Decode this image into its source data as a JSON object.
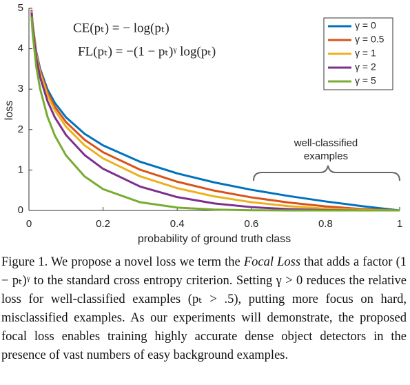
{
  "chart_data": {
    "type": "line",
    "xlabel": "probability of ground truth class",
    "ylabel": "loss",
    "annotations": [
      "CE(pₜ) = − log(pₜ)",
      "FL(pₜ) = −(1 − pₜ)ᵞ log(pₜ)"
    ],
    "brace_label": [
      "well-classified",
      "examples"
    ],
    "xlim": [
      0,
      1
    ],
    "ylim": [
      0,
      5
    ],
    "xticks": [
      0,
      0.2,
      0.4,
      0.6,
      0.8,
      1
    ],
    "yticks": [
      0,
      1,
      2,
      3,
      4,
      5
    ],
    "legend": "upper right",
    "x": [
      0.007,
      0.01,
      0.02,
      0.03,
      0.05,
      0.07,
      0.1,
      0.15,
      0.2,
      0.3,
      0.4,
      0.5,
      0.6,
      0.7,
      0.8,
      0.9,
      1
    ],
    "series": [
      {
        "name": "γ = 0",
        "color": "#0072bd",
        "values": [
          4.962,
          4.605,
          3.912,
          3.507,
          2.996,
          2.659,
          2.303,
          1.897,
          1.609,
          1.204,
          0.916,
          0.693,
          0.511,
          0.357,
          0.223,
          0.105,
          0
        ]
      },
      {
        "name": "γ = 0.5",
        "color": "#d95319",
        "values": [
          4.945,
          4.582,
          3.873,
          3.454,
          2.92,
          2.564,
          2.185,
          1.749,
          1.439,
          1.007,
          0.71,
          0.49,
          0.323,
          0.196,
          0.1,
          0.033,
          0
        ]
      },
      {
        "name": "γ = 1",
        "color": "#edb120",
        "values": [
          4.927,
          4.559,
          3.834,
          3.402,
          2.846,
          2.473,
          2.073,
          1.612,
          1.287,
          0.843,
          0.55,
          0.347,
          0.204,
          0.107,
          0.045,
          0.011,
          0
        ]
      },
      {
        "name": "γ = 2",
        "color": "#7e2f8e",
        "values": [
          4.893,
          4.514,
          3.757,
          3.3,
          2.704,
          2.3,
          1.865,
          1.371,
          1.03,
          0.59,
          0.33,
          0.173,
          0.082,
          0.032,
          0.009,
          0.001,
          0
        ]
      },
      {
        "name": "γ = 5",
        "color": "#77ac30",
        "values": [
          4.791,
          4.38,
          3.536,
          3.011,
          2.318,
          1.85,
          1.36,
          0.842,
          0.527,
          0.202,
          0.071,
          0.022,
          0.005,
          0.001,
          0,
          0,
          0
        ]
      }
    ]
  },
  "caption": [
    "Figure 1. We propose a novel loss we term the ",
    "Focal Loss",
    " that adds a factor (1 − pₜ)ᵞ to the standard cross entropy criterion. Setting γ > 0 reduces the relative loss for well-classified examples (pₜ > .5), putting more focus on hard, misclassified examples. As our experiments will demonstrate, the proposed focal loss enables training highly accurate dense object detectors in the presence of vast numbers of easy background examples."
  ]
}
